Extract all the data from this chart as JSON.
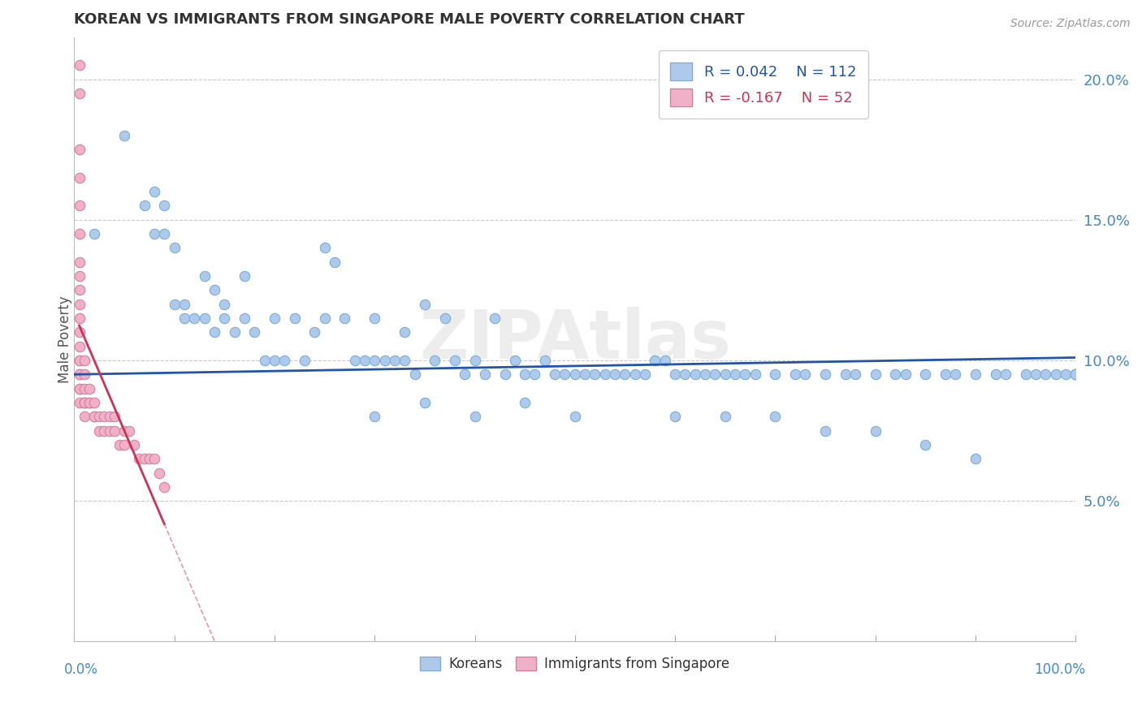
{
  "title": "KOREAN VS IMMIGRANTS FROM SINGAPORE MALE POVERTY CORRELATION CHART",
  "source": "Source: ZipAtlas.com",
  "ylabel": "Male Poverty",
  "xlim": [
    0.0,
    1.0
  ],
  "ylim": [
    0.0,
    0.215
  ],
  "yticks": [
    0.05,
    0.1,
    0.15,
    0.2
  ],
  "ytick_labels": [
    "5.0%",
    "10.0%",
    "15.0%",
    "20.0%"
  ],
  "legend_korean_R": "0.042",
  "legend_korean_N": "112",
  "legend_singapore_R": "-0.167",
  "legend_singapore_N": "52",
  "korean_color": "#aec9eb",
  "korean_edge": "#7bafd4",
  "singapore_color": "#f0b0c8",
  "singapore_edge": "#d880a0",
  "trendline_korean_color": "#2255aa",
  "trendline_singapore_color": "#cc3355",
  "background": "#ffffff",
  "grid_color": "#c8c8d0",
  "watermark": "ZIPAtlas",
  "tick_label_color": "#4488cc",
  "korean_x": [
    0.02,
    0.05,
    0.07,
    0.08,
    0.08,
    0.09,
    0.09,
    0.1,
    0.1,
    0.11,
    0.11,
    0.12,
    0.13,
    0.13,
    0.14,
    0.14,
    0.15,
    0.15,
    0.16,
    0.17,
    0.17,
    0.18,
    0.19,
    0.2,
    0.2,
    0.21,
    0.22,
    0.23,
    0.24,
    0.25,
    0.25,
    0.26,
    0.27,
    0.28,
    0.29,
    0.3,
    0.3,
    0.31,
    0.32,
    0.33,
    0.33,
    0.34,
    0.35,
    0.36,
    0.37,
    0.38,
    0.39,
    0.4,
    0.41,
    0.42,
    0.43,
    0.44,
    0.45,
    0.46,
    0.47,
    0.48,
    0.49,
    0.5,
    0.51,
    0.52,
    0.53,
    0.54,
    0.55,
    0.56,
    0.57,
    0.58,
    0.59,
    0.6,
    0.61,
    0.62,
    0.63,
    0.64,
    0.65,
    0.66,
    0.67,
    0.68,
    0.7,
    0.72,
    0.73,
    0.75,
    0.77,
    0.78,
    0.8,
    0.82,
    0.83,
    0.85,
    0.87,
    0.88,
    0.9,
    0.92,
    0.93,
    0.95,
    0.96,
    0.97,
    0.98,
    0.99,
    1.0,
    1.0,
    1.0,
    1.0,
    0.3,
    0.35,
    0.4,
    0.45,
    0.5,
    0.6,
    0.65,
    0.7,
    0.75,
    0.8,
    0.85,
    0.9
  ],
  "korean_y": [
    0.145,
    0.18,
    0.155,
    0.16,
    0.145,
    0.145,
    0.155,
    0.12,
    0.14,
    0.115,
    0.12,
    0.115,
    0.115,
    0.13,
    0.11,
    0.125,
    0.12,
    0.115,
    0.11,
    0.115,
    0.13,
    0.11,
    0.1,
    0.115,
    0.1,
    0.1,
    0.115,
    0.1,
    0.11,
    0.115,
    0.14,
    0.135,
    0.115,
    0.1,
    0.1,
    0.115,
    0.1,
    0.1,
    0.1,
    0.11,
    0.1,
    0.095,
    0.12,
    0.1,
    0.115,
    0.1,
    0.095,
    0.1,
    0.095,
    0.115,
    0.095,
    0.1,
    0.095,
    0.095,
    0.1,
    0.095,
    0.095,
    0.095,
    0.095,
    0.095,
    0.095,
    0.095,
    0.095,
    0.095,
    0.095,
    0.1,
    0.1,
    0.095,
    0.095,
    0.095,
    0.095,
    0.095,
    0.095,
    0.095,
    0.095,
    0.095,
    0.095,
    0.095,
    0.095,
    0.095,
    0.095,
    0.095,
    0.095,
    0.095,
    0.095,
    0.095,
    0.095,
    0.095,
    0.095,
    0.095,
    0.095,
    0.095,
    0.095,
    0.095,
    0.095,
    0.095,
    0.095,
    0.095,
    0.095,
    0.095,
    0.08,
    0.085,
    0.08,
    0.085,
    0.08,
    0.08,
    0.08,
    0.08,
    0.075,
    0.075,
    0.07,
    0.065
  ],
  "singapore_x": [
    0.005,
    0.005,
    0.005,
    0.005,
    0.005,
    0.005,
    0.005,
    0.005,
    0.005,
    0.005,
    0.005,
    0.005,
    0.005,
    0.005,
    0.005,
    0.005,
    0.005,
    0.005,
    0.005,
    0.005,
    0.01,
    0.01,
    0.01,
    0.01,
    0.01,
    0.01,
    0.01,
    0.015,
    0.015,
    0.015,
    0.02,
    0.02,
    0.02,
    0.025,
    0.025,
    0.03,
    0.03,
    0.035,
    0.035,
    0.04,
    0.04,
    0.045,
    0.05,
    0.05,
    0.055,
    0.06,
    0.065,
    0.07,
    0.075,
    0.08,
    0.085,
    0.09
  ],
  "singapore_y": [
    0.205,
    0.195,
    0.175,
    0.165,
    0.155,
    0.145,
    0.135,
    0.13,
    0.125,
    0.12,
    0.115,
    0.11,
    0.105,
    0.1,
    0.1,
    0.095,
    0.095,
    0.09,
    0.09,
    0.085,
    0.1,
    0.095,
    0.09,
    0.085,
    0.085,
    0.085,
    0.08,
    0.085,
    0.09,
    0.085,
    0.085,
    0.08,
    0.08,
    0.08,
    0.075,
    0.08,
    0.075,
    0.08,
    0.075,
    0.08,
    0.075,
    0.07,
    0.075,
    0.07,
    0.075,
    0.07,
    0.065,
    0.065,
    0.065,
    0.065,
    0.06,
    0.055
  ],
  "trendline_korean_x0": 0.0,
  "trendline_korean_x1": 1.0,
  "trendline_korean_y0": 0.095,
  "trendline_korean_y1": 0.101,
  "trendline_singapore_solid_x0": 0.005,
  "trendline_singapore_solid_x1": 0.09,
  "trendline_singapore_dashed_x1": 0.22
}
